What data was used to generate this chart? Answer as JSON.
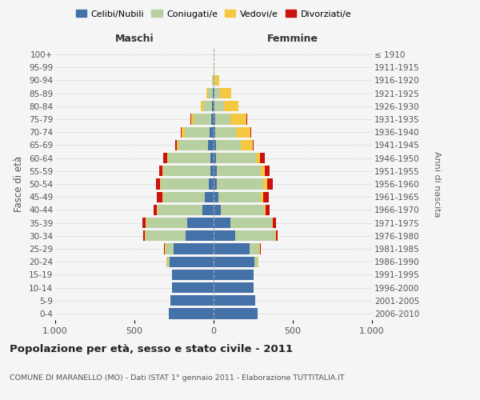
{
  "age_groups": [
    "0-4",
    "5-9",
    "10-14",
    "15-19",
    "20-24",
    "25-29",
    "30-34",
    "35-39",
    "40-44",
    "45-49",
    "50-54",
    "55-59",
    "60-64",
    "65-69",
    "70-74",
    "75-79",
    "80-84",
    "85-89",
    "90-94",
    "95-99",
    "100+"
  ],
  "birth_years": [
    "2006-2010",
    "2001-2005",
    "1996-2000",
    "1991-1995",
    "1986-1990",
    "1981-1985",
    "1976-1980",
    "1971-1975",
    "1966-1970",
    "1961-1965",
    "1956-1960",
    "1951-1955",
    "1946-1950",
    "1941-1945",
    "1936-1940",
    "1931-1935",
    "1926-1930",
    "1921-1925",
    "1916-1920",
    "1911-1915",
    "≤ 1910"
  ],
  "males": {
    "celibi": [
      285,
      275,
      265,
      265,
      280,
      255,
      175,
      165,
      70,
      55,
      30,
      22,
      20,
      35,
      25,
      15,
      8,
      4,
      2,
      0,
      0
    ],
    "coniugati": [
      0,
      0,
      0,
      0,
      15,
      50,
      255,
      260,
      285,
      265,
      305,
      295,
      270,
      185,
      155,
      110,
      60,
      30,
      5,
      2,
      0
    ],
    "vedovi": [
      0,
      0,
      0,
      0,
      2,
      2,
      2,
      3,
      3,
      5,
      5,
      5,
      5,
      10,
      20,
      15,
      15,
      10,
      3,
      0,
      0
    ],
    "divorziati": [
      0,
      0,
      0,
      0,
      2,
      5,
      10,
      20,
      20,
      35,
      25,
      22,
      25,
      10,
      8,
      5,
      0,
      0,
      0,
      0,
      0
    ]
  },
  "females": {
    "nubili": [
      280,
      265,
      255,
      255,
      260,
      225,
      135,
      105,
      45,
      30,
      22,
      18,
      15,
      15,
      10,
      10,
      5,
      5,
      2,
      0,
      0
    ],
    "coniugate": [
      0,
      0,
      0,
      0,
      20,
      65,
      255,
      265,
      275,
      270,
      290,
      280,
      255,
      155,
      130,
      95,
      60,
      35,
      8,
      2,
      0
    ],
    "vedove": [
      0,
      0,
      0,
      0,
      2,
      2,
      3,
      5,
      10,
      15,
      25,
      25,
      25,
      75,
      90,
      100,
      90,
      70,
      25,
      5,
      2
    ],
    "divorziate": [
      0,
      0,
      0,
      0,
      2,
      5,
      10,
      20,
      25,
      35,
      35,
      30,
      30,
      10,
      8,
      5,
      3,
      0,
      0,
      0,
      0
    ]
  },
  "colors": {
    "celibi": "#4472a8",
    "coniugati": "#b8cfa0",
    "vedovi": "#f5c842",
    "divorziati": "#cc1111"
  },
  "xlim": 1000,
  "title": "Popolazione per età, sesso e stato civile - 2011",
  "subtitle": "COMUNE DI MARANELLO (MO) - Dati ISTAT 1° gennaio 2011 - Elaborazione TUTTITALIA.IT",
  "xlabel_left": "Maschi",
  "xlabel_right": "Femmine",
  "ylabel_left": "Fasce di età",
  "ylabel_right": "Anni di nascita",
  "bg_color": "#f5f5f5",
  "grid_color": "#cccccc"
}
